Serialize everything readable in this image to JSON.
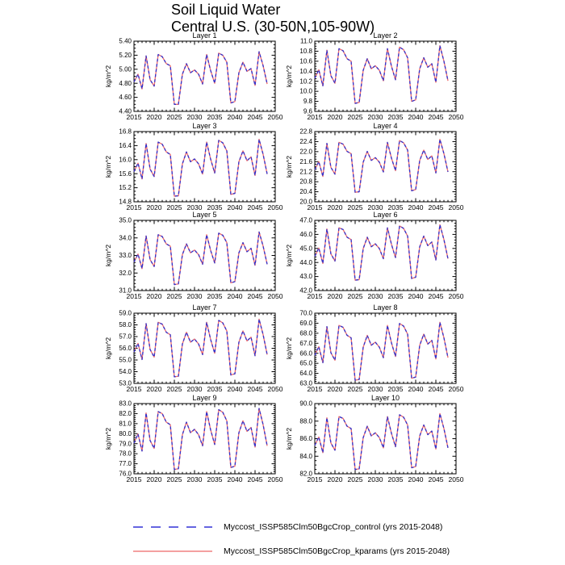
{
  "title": {
    "line1": "Soil Liquid Water",
    "line2": "Central U.S. (30-50N,105-90W)"
  },
  "axis": {
    "ylabel": "kg/m^2",
    "xtick_labels": [
      "2015",
      "2020",
      "2025",
      "2030",
      "2035",
      "2040",
      "2045",
      "2050"
    ],
    "xlim": [
      2015,
      2050
    ]
  },
  "legend": {
    "entries": [
      {
        "label": "Myccost_ISSP585Clm50BgcCrop_control (yrs 2015-2048)",
        "color": "#6565e0",
        "style": "dashed"
      },
      {
        "label": "Myccost_ISSP585Clm50BgcCrop_kparams (yrs 2015-2048)",
        "color": "#f08080",
        "style": "solid"
      }
    ]
  },
  "chart_data": {
    "type": "line",
    "title": "Soil Liquid Water — Central U.S. (30-50N,105-90W)",
    "x_start_year": 2015,
    "x_end_year": 2048,
    "xlim": [
      2015,
      2050
    ],
    "grid": false,
    "legend_position": "bottom",
    "series": [
      {
        "name": "Myccost_ISSP585Clm50BgcCrop_control (yrs 2015-2048)",
        "color": "#3333cc",
        "style": "dashed"
      },
      {
        "name": "Myccost_ISSP585Clm50BgcCrop_kparams (yrs 2015-2048)",
        "color": "#ee6a6a",
        "style": "solid"
      }
    ],
    "note": "Both series overlap almost exactly in every panel; values below are shared by both series.",
    "layers": [
      {
        "title": "Layer 1",
        "ylabel": "kg/m^2",
        "ylim": [
          4.4,
          5.4
        ],
        "ytick_labels": [
          "4.40",
          "4.60",
          "4.80",
          "5.00",
          "5.20",
          "5.40"
        ],
        "minor_div": 4,
        "values": [
          4.82,
          4.93,
          4.72,
          5.19,
          4.85,
          4.76,
          5.21,
          5.18,
          5.08,
          5.05,
          4.5,
          4.5,
          4.93,
          5.08,
          4.95,
          4.99,
          4.93,
          4.79,
          5.21,
          4.98,
          4.8,
          5.23,
          5.2,
          5.1,
          4.52,
          4.54,
          4.95,
          5.1,
          4.97,
          5.01,
          4.77,
          5.25,
          5.05,
          4.79
        ]
      },
      {
        "title": "Layer 2",
        "ylabel": "kg/m^2",
        "ylim": [
          9.6,
          11.0
        ],
        "ytick_labels": [
          "9.6",
          "9.8",
          "10.0",
          "10.2",
          "10.4",
          "10.6",
          "10.8",
          "11.0"
        ],
        "minor_div": 4,
        "values": [
          10.26,
          10.43,
          10.11,
          10.82,
          10.31,
          10.16,
          10.85,
          10.81,
          10.65,
          10.6,
          9.76,
          9.78,
          10.42,
          10.65,
          10.45,
          10.51,
          10.42,
          10.21,
          10.85,
          10.5,
          10.23,
          10.88,
          10.83,
          10.67,
          9.8,
          9.83,
          10.45,
          10.67,
          10.48,
          10.55,
          10.18,
          10.91,
          10.6,
          10.21
        ]
      },
      {
        "title": "Layer 3",
        "ylabel": "kg/m^2",
        "ylim": [
          14.8,
          16.8
        ],
        "ytick_labels": [
          "14.8",
          "15.2",
          "15.6",
          "16.0",
          "16.4",
          "16.8"
        ],
        "minor_div": 4,
        "values": [
          15.66,
          15.9,
          15.45,
          16.46,
          15.73,
          15.52,
          16.5,
          16.44,
          16.22,
          16.15,
          14.96,
          14.97,
          15.88,
          16.22,
          15.94,
          16.02,
          15.88,
          15.59,
          16.5,
          16.01,
          15.62,
          16.55,
          16.48,
          16.25,
          15.01,
          15.04,
          15.94,
          16.25,
          15.97,
          16.08,
          15.55,
          16.58,
          16.15,
          15.59
        ]
      },
      {
        "title": "Layer 4",
        "ylabel": "kg/m^2",
        "ylim": [
          20.0,
          22.8
        ],
        "ytick_labels": [
          "20.0",
          "20.4",
          "20.8",
          "21.2",
          "21.6",
          "22.0",
          "22.4",
          "22.8"
        ],
        "minor_div": 4,
        "values": [
          21.28,
          21.6,
          21.01,
          22.33,
          21.37,
          21.1,
          22.37,
          22.3,
          22.01,
          21.92,
          20.38,
          20.4,
          21.58,
          22.01,
          21.65,
          21.76,
          21.58,
          21.19,
          22.37,
          21.74,
          21.24,
          22.44,
          22.35,
          22.06,
          20.44,
          20.49,
          21.65,
          22.06,
          21.69,
          21.83,
          21.15,
          22.49,
          21.92,
          21.19
        ]
      },
      {
        "title": "Layer 5",
        "ylabel": "kg/m^2",
        "ylim": [
          31.0,
          35.0
        ],
        "ytick_labels": [
          "31.0",
          "32.0",
          "33.0",
          "34.0",
          "35.0"
        ],
        "minor_div": 5,
        "values": [
          32.63,
          33.08,
          32.25,
          34.11,
          32.76,
          32.37,
          34.18,
          34.08,
          33.66,
          33.53,
          31.34,
          31.38,
          33.05,
          33.66,
          33.15,
          33.31,
          33.05,
          32.5,
          34.18,
          33.28,
          32.57,
          34.27,
          34.15,
          33.73,
          31.44,
          31.51,
          33.15,
          33.73,
          33.21,
          33.41,
          32.44,
          34.34,
          33.53,
          32.5
        ]
      },
      {
        "title": "Layer 6",
        "ylabel": "kg/m^2",
        "ylim": [
          42.0,
          47.0
        ],
        "ytick_labels": [
          "42.0",
          "43.0",
          "44.0",
          "45.0",
          "46.0",
          "47.0"
        ],
        "minor_div": 5,
        "values": [
          44.44,
          45.03,
          43.93,
          46.39,
          44.61,
          44.1,
          46.47,
          46.35,
          45.8,
          45.63,
          42.74,
          42.78,
          44.99,
          45.8,
          45.12,
          45.33,
          44.99,
          44.27,
          46.47,
          45.29,
          44.35,
          46.6,
          46.43,
          45.88,
          42.86,
          42.95,
          45.12,
          45.88,
          45.2,
          45.46,
          44.18,
          46.69,
          45.63,
          44.27
        ]
      },
      {
        "title": "Layer 7",
        "ylabel": "kg/m^2",
        "ylim": [
          53.0,
          59.0
        ],
        "ytick_labels": [
          "53.0",
          "54.0",
          "55.0",
          "56.0",
          "57.0",
          "58.0",
          "59.0"
        ],
        "minor_div": 5,
        "values": [
          55.68,
          56.42,
          55.04,
          58.11,
          55.89,
          55.25,
          58.22,
          58.06,
          57.37,
          57.16,
          53.56,
          53.61,
          56.37,
          57.37,
          56.52,
          56.79,
          56.37,
          55.46,
          58.22,
          56.74,
          55.57,
          58.38,
          58.17,
          57.48,
          53.72,
          53.82,
          56.52,
          57.48,
          56.63,
          56.95,
          55.36,
          58.49,
          57.16,
          55.46
        ]
      },
      {
        "title": "Layer 8",
        "ylabel": "kg/m^2",
        "ylim": [
          63.0,
          70.0
        ],
        "ytick_labels": [
          "63.0",
          "64.0",
          "65.0",
          "66.0",
          "67.0",
          "68.0",
          "69.0",
          "70.0"
        ],
        "minor_div": 5,
        "values": [
          65.8,
          66.67,
          65.06,
          68.66,
          66.05,
          65.31,
          68.78,
          68.59,
          67.79,
          67.54,
          63.32,
          63.39,
          66.61,
          67.79,
          66.8,
          67.11,
          66.61,
          65.56,
          68.78,
          67.04,
          65.68,
          68.97,
          68.72,
          67.91,
          63.51,
          63.63,
          66.8,
          67.91,
          66.92,
          67.29,
          65.43,
          69.09,
          67.54,
          65.56
        ]
      },
      {
        "title": "Layer 9",
        "ylabel": "kg/m^2",
        "ylim": [
          76.0,
          83.0
        ],
        "ytick_labels": [
          "76.0",
          "77.0",
          "78.0",
          "79.0",
          "80.0",
          "81.0",
          "82.0",
          "83.0"
        ],
        "minor_div": 5,
        "values": [
          79.05,
          79.97,
          78.27,
          82.06,
          79.31,
          78.53,
          82.2,
          82.0,
          81.15,
          80.89,
          76.43,
          76.5,
          79.9,
          81.15,
          80.1,
          80.43,
          79.9,
          78.79,
          82.2,
          80.36,
          78.92,
          82.39,
          82.13,
          81.28,
          76.63,
          76.76,
          80.1,
          81.28,
          80.23,
          80.62,
          78.66,
          82.52,
          80.89,
          78.79
        ]
      },
      {
        "title": "Layer 10",
        "ylabel": "kg/m^2",
        "ylim": [
          82.0,
          90.0
        ],
        "ytick_labels": [
          "82.0",
          "84.0",
          "86.0",
          "88.0",
          "90.0"
        ],
        "minor_div": 4,
        "values": [
          85.23,
          86.19,
          84.41,
          88.38,
          85.5,
          84.68,
          88.52,
          88.31,
          87.42,
          87.15,
          82.49,
          82.56,
          86.12,
          87.42,
          86.32,
          86.67,
          86.12,
          84.95,
          88.52,
          86.6,
          85.09,
          88.72,
          88.45,
          87.56,
          82.69,
          82.83,
          86.32,
          87.56,
          86.46,
          86.87,
          84.82,
          88.86,
          87.15,
          84.95
        ]
      }
    ]
  }
}
